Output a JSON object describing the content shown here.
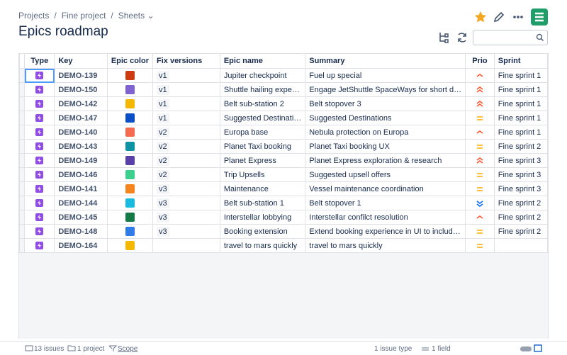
{
  "breadcrumbs": [
    "Projects",
    "Fine project",
    "Sheets"
  ],
  "title": "Epics roadmap",
  "table": {
    "columns": [
      "Type",
      "Key",
      "Epic color",
      "Fix versions",
      "Epic name",
      "Summary",
      "Prio",
      "Sprint"
    ],
    "rows": [
      {
        "key": "DEMO-139",
        "color": "#cc3b12",
        "fix_version": "v1",
        "epic_name": "Jupiter checkpoint",
        "summary": "Fuel up special",
        "priority": "high",
        "sprint": "Fine sprint 1"
      },
      {
        "key": "DEMO-150",
        "color": "#8062d0",
        "fix_version": "v1",
        "epic_name": "Shuttle hailing expe…",
        "summary": "Engage JetShuttle SpaceWays for short d…",
        "priority": "highest",
        "sprint": "Fine sprint 1"
      },
      {
        "key": "DEMO-142",
        "color": "#f5b800",
        "fix_version": "v1",
        "epic_name": "Belt sub-station 2",
        "summary": "Belt stopover 3",
        "priority": "highest",
        "sprint": "Fine sprint 1"
      },
      {
        "key": "DEMO-147",
        "color": "#0b4fc6",
        "fix_version": "v1",
        "epic_name": "Suggested Destinati…",
        "summary": "Suggested Destinations",
        "priority": "medium",
        "sprint": "Fine sprint 1"
      },
      {
        "key": "DEMO-140",
        "color": "#f46b50",
        "fix_version": "v2",
        "epic_name": "Europa base",
        "summary": "Nebula protection on Europa",
        "priority": "high",
        "sprint": "Fine sprint 1"
      },
      {
        "key": "DEMO-143",
        "color": "#0e93a4",
        "fix_version": "v2",
        "epic_name": "Planet Taxi booking",
        "summary": "Planet Taxi booking UX",
        "priority": "medium",
        "sprint": "Fine sprint 2"
      },
      {
        "key": "DEMO-149",
        "color": "#5a3fa8",
        "fix_version": "v2",
        "epic_name": "Planet Express",
        "summary": "Planet Express exploration & research",
        "priority": "highest",
        "sprint": "Fine sprint 3"
      },
      {
        "key": "DEMO-146",
        "color": "#3dcf8e",
        "fix_version": "v2",
        "epic_name": "Trip Upsells",
        "summary": "Suggested upsell offers",
        "priority": "medium",
        "sprint": "Fine sprint 3"
      },
      {
        "key": "DEMO-141",
        "color": "#f5841f",
        "fix_version": "v3",
        "epic_name": "Maintenance",
        "summary": "Vessel maintenance coordination",
        "priority": "medium",
        "sprint": "Fine sprint 3"
      },
      {
        "key": "DEMO-144",
        "color": "#1bbbe0",
        "fix_version": "v3",
        "epic_name": "Belt sub-station 1",
        "summary": "Belt stopover 1",
        "priority": "lowest",
        "sprint": "Fine sprint 2"
      },
      {
        "key": "DEMO-145",
        "color": "#167a46",
        "fix_version": "v3",
        "epic_name": "Interstellar lobbying",
        "summary": "Interstellar confilct resolution",
        "priority": "high",
        "sprint": "Fine sprint 2"
      },
      {
        "key": "DEMO-148",
        "color": "#2f7be8",
        "fix_version": "v3",
        "epic_name": "Booking extension",
        "summary": "Extend booking experience in UI to includ…",
        "priority": "medium",
        "sprint": "Fine sprint 2"
      },
      {
        "key": "DEMO-164",
        "color": "#f5b800",
        "fix_version": null,
        "epic_name": "travel to mars quickly",
        "summary": "travel to mars quickly",
        "priority": "medium",
        "sprint": null
      }
    ]
  },
  "footer": {
    "issues": "13 issues",
    "projects": "1 project",
    "scope": "Scope",
    "issue_types": "1 issue type",
    "fields": "1 field"
  }
}
